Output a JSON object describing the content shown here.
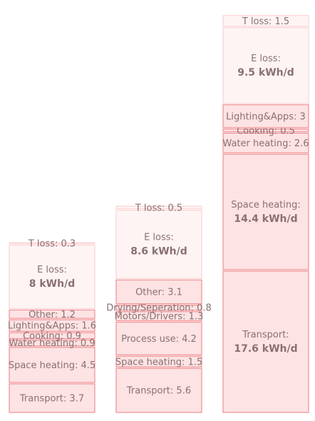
{
  "chart_data": {
    "type": "bar",
    "stacked": true,
    "unit": "kWh/d",
    "columns": [
      {
        "segments": [
          {
            "name": "Transport",
            "value": 3.7,
            "label": "Transport: 3.7",
            "style": "solid"
          },
          {
            "name": "Space heating",
            "value": 4.5,
            "label": "Space heating: 4.5",
            "style": "solid"
          },
          {
            "name": "Water heating",
            "value": 0.9,
            "label": "Water heating: 0.9",
            "style": "solid"
          },
          {
            "name": "Cooking",
            "value": 0.9,
            "label": "Cooking: 0.9",
            "style": "solid"
          },
          {
            "name": "Lighting&Apps",
            "value": 1.6,
            "label": "Lighting&Apps: 1.6",
            "style": "solid"
          },
          {
            "name": "Other",
            "value": 1.2,
            "label": "Other: 1.2",
            "style": "solid"
          },
          {
            "name": "E loss",
            "value": 8,
            "label": "E loss:",
            "value_label": "8 kWh/d",
            "style": "light"
          },
          {
            "name": "T loss",
            "value": 0.3,
            "label": "T loss: 0.3",
            "style": "light"
          }
        ]
      },
      {
        "segments": [
          {
            "name": "Transport",
            "value": 5.6,
            "label": "Transport: 5.6",
            "style": "solid"
          },
          {
            "name": "Space heating",
            "value": 1.5,
            "label": "Space heating: 1.5",
            "style": "solid"
          },
          {
            "name": "Process use",
            "value": 4.2,
            "label": "Process use: 4.2",
            "style": "solid"
          },
          {
            "name": "Motors/Drivers",
            "value": 1.3,
            "label": "Motors/Drivers: 1.3",
            "style": "solid"
          },
          {
            "name": "Drying/Seperation",
            "value": 0.8,
            "label": "Drying/Seperation: 0.8",
            "style": "solid"
          },
          {
            "name": "Other",
            "value": 3.1,
            "label": "Other: 3.1",
            "style": "solid"
          },
          {
            "name": "E loss",
            "value": 8.6,
            "label": "E loss:",
            "value_label": "8.6 kWh/d",
            "style": "light"
          },
          {
            "name": "T loss",
            "value": 0.5,
            "label": "T loss: 0.5",
            "style": "light"
          }
        ]
      },
      {
        "segments": [
          {
            "name": "Transport",
            "value": 17.6,
            "label": "Transport:",
            "value_label": "17.6 kWh/d",
            "style": "solid"
          },
          {
            "name": "Space heating",
            "value": 14.4,
            "label": "Space heating:",
            "value_label": "14.4 kWh/d",
            "style": "solid"
          },
          {
            "name": "Water heating",
            "value": 2.6,
            "label": "Water heating: 2.6",
            "style": "solid"
          },
          {
            "name": "Cooking",
            "value": 0.5,
            "label": "Cooking: 0.5",
            "style": "solid"
          },
          {
            "name": "Lighting&Apps",
            "value": 3,
            "label": "Lighting&Apps: 3",
            "style": "solid"
          },
          {
            "name": "E loss",
            "value": 9.5,
            "label": "E loss:",
            "value_label": "9.5 kWh/d",
            "style": "light"
          },
          {
            "name": "T loss",
            "value": 1.5,
            "label": "T loss: 1.5",
            "style": "light"
          }
        ]
      }
    ],
    "colors": {
      "solid_fill": "#fde3e4",
      "solid_stroke": "#f08f93",
      "light_fill": "#fff4f4",
      "light_stroke": "#fbd3d4",
      "text": "#8a7070"
    },
    "title": "",
    "xlabel": "",
    "ylabel": "",
    "grid": false,
    "legend": "none"
  }
}
